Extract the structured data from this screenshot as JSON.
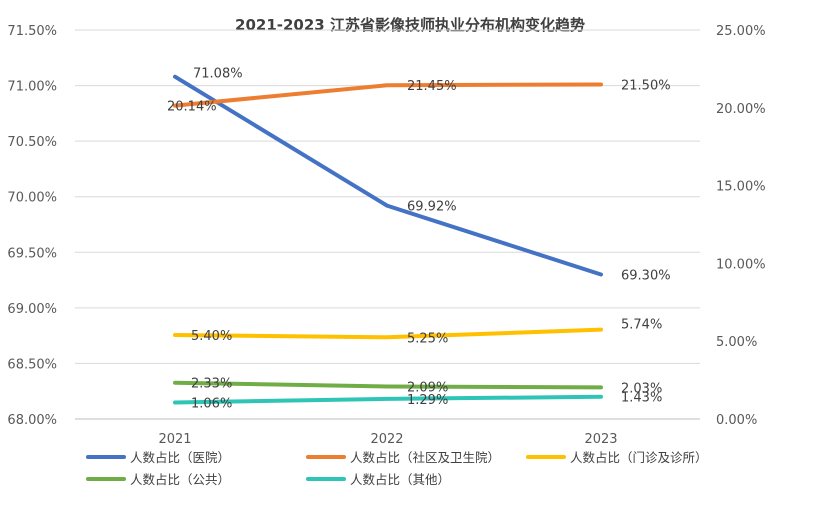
{
  "chart_data": {
    "type": "line",
    "title": "2021-2023 江苏省影像技师执业分布机构变化趋势",
    "categories": [
      "2021",
      "2022",
      "2023"
    ],
    "y_left": {
      "ylim": [
        68.0,
        71.5
      ],
      "ticks": [
        "68.00%",
        "68.50%",
        "69.00%",
        "69.50%",
        "70.00%",
        "70.50%",
        "71.00%",
        "71.50%"
      ]
    },
    "y_right": {
      "ylim": [
        0,
        25
      ],
      "ticks": [
        "0.00%",
        "5.00%",
        "10.00%",
        "15.00%",
        "20.00%",
        "25.00%"
      ]
    },
    "grid": true,
    "legend_position": "bottom-left",
    "series": [
      {
        "name": "人数占比（医院）",
        "axis": "left",
        "color": "#4472C4",
        "values": [
          71.08,
          69.92,
          69.3
        ],
        "labels": [
          "71.08%",
          "69.92%",
          "69.30%"
        ]
      },
      {
        "name": "人数占比（社区及卫生院）",
        "axis": "right",
        "color": "#ED7D31",
        "values": [
          20.14,
          21.45,
          21.5
        ],
        "labels": [
          "20.14%",
          "21.45%",
          "21.50%"
        ]
      },
      {
        "name": "人数占比（门诊及诊所）",
        "axis": "right",
        "color": "#FFC000",
        "values": [
          5.4,
          5.25,
          5.74
        ],
        "labels": [
          "5.40%",
          "5.25%",
          "5.74%"
        ]
      },
      {
        "name": "人数占比（公共）",
        "axis": "right",
        "color": "#70AD47",
        "values": [
          2.33,
          2.09,
          2.03
        ],
        "labels": [
          "2.33%",
          "2.09%",
          "2.03%"
        ]
      },
      {
        "name": "人数占比（其他）",
        "axis": "right",
        "color": "#2EC4B6",
        "values": [
          1.06,
          1.29,
          1.43
        ],
        "labels": [
          "1.06%",
          "1.29%",
          "1.43%"
        ]
      }
    ]
  }
}
